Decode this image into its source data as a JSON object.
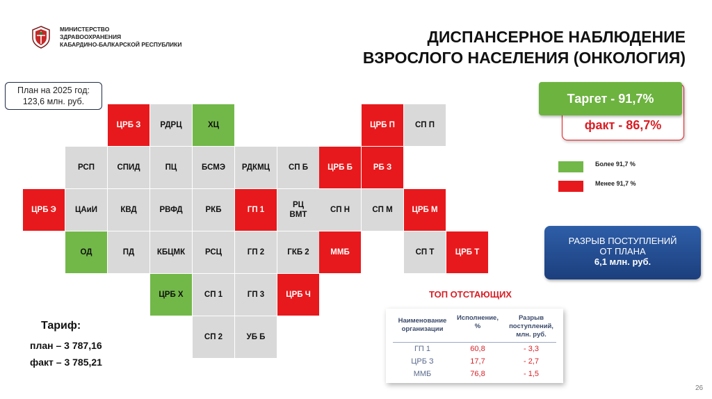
{
  "header": {
    "ministry_lines": [
      "МИНИСТЕРСТВО",
      "ЗДРАВООХРАНЕНИЯ",
      "КАБАРДИНО-БАЛКАРСКОЙ РЕСПУБЛИКИ"
    ],
    "title_line1": "ДИСПАНСЕРНОЕ НАБЛЮДЕНИЕ",
    "title_line2": "ВЗРОСЛОГО НАСЕЛЕНИЯ (ОНКОЛОГИЯ)"
  },
  "plan": {
    "line1": "План на 2025 год:",
    "line2": "123,6 млн. руб."
  },
  "status_colors": {
    "above": "#72b849",
    "below": "#e8191c",
    "neutral": "#d9d9d9"
  },
  "grid": [
    {
      "label": "ЦРБ З",
      "status": "red"
    },
    {
      "label": "РДРЦ",
      "status": "gray"
    },
    {
      "label": "ХЦ",
      "status": "green"
    },
    {
      "label": "ЦРБ П",
      "status": "red"
    },
    {
      "label": "СП П",
      "status": "gray"
    },
    {
      "label": "РСП",
      "status": "gray"
    },
    {
      "label": "СПИД",
      "status": "gray"
    },
    {
      "label": "ПЦ",
      "status": "gray"
    },
    {
      "label": "БСМЭ",
      "status": "gray"
    },
    {
      "label": "РДКМЦ",
      "status": "gray"
    },
    {
      "label": "СП Б",
      "status": "gray"
    },
    {
      "label": "ЦРБ Б",
      "status": "red"
    },
    {
      "label": "РБ З",
      "status": "red"
    },
    {
      "label": "ЦРБ Э",
      "status": "red"
    },
    {
      "label": "ЦАиИ",
      "status": "gray"
    },
    {
      "label": "КВД",
      "status": "gray"
    },
    {
      "label": "РВФД",
      "status": "gray"
    },
    {
      "label": "РКБ",
      "status": "gray"
    },
    {
      "label": "ГП 1",
      "status": "red"
    },
    {
      "label": "РЦ\nВМТ",
      "status": "gray"
    },
    {
      "label": "СП Н",
      "status": "gray"
    },
    {
      "label": "СП М",
      "status": "gray"
    },
    {
      "label": "ЦРБ М",
      "status": "red"
    },
    {
      "label": "ОД",
      "status": "green"
    },
    {
      "label": "ПД",
      "status": "gray"
    },
    {
      "label": "КБЦМК",
      "status": "gray"
    },
    {
      "label": "РСЦ",
      "status": "gray"
    },
    {
      "label": "ГП 2",
      "status": "gray"
    },
    {
      "label": "ГКБ 2",
      "status": "gray"
    },
    {
      "label": "ММБ",
      "status": "red"
    },
    {
      "label": "СП Т",
      "status": "gray"
    },
    {
      "label": "ЦРБ Т",
      "status": "red"
    },
    {
      "label": "ЦРБ Х",
      "status": "green"
    },
    {
      "label": "СП 1",
      "status": "gray"
    },
    {
      "label": "ГП 3",
      "status": "gray"
    },
    {
      "label": "ЦРБ Ч",
      "status": "red"
    },
    {
      "label": "СП 2",
      "status": "gray"
    },
    {
      "label": "УБ Б",
      "status": "gray"
    }
  ],
  "kpi": {
    "target": "Таргет  -  91,7%",
    "fact": "факт  -  86,7%"
  },
  "legend": {
    "above": "Более 91,7 %",
    "below": "Менее 91,7 %"
  },
  "gap": {
    "line1": "РАЗРЫВ ПОСТУПЛЕНИЙ",
    "line2": "ОТ ПЛАНА",
    "line3": "6,1 млн. руб."
  },
  "top_lagging": {
    "title": "ТОП ОТСТАЮЩИХ",
    "headers": [
      "Наименование\nорганизации",
      "Исполнение,\n%",
      "Разрыв\nпоступлений,\nмлн. руб."
    ],
    "rows": [
      {
        "name": "ГП 1",
        "exec": "60,8",
        "gap": "- 3,3"
      },
      {
        "name": "ЦРБ З",
        "exec": "17,7",
        "gap": "- 2,7"
      },
      {
        "name": "ММБ",
        "exec": "76,8",
        "gap": "- 1,5"
      }
    ]
  },
  "tariff": {
    "title": "Тариф:",
    "plan": "план – 3 787,16",
    "fact": "факт – 3 785,21"
  },
  "page_number": "26"
}
